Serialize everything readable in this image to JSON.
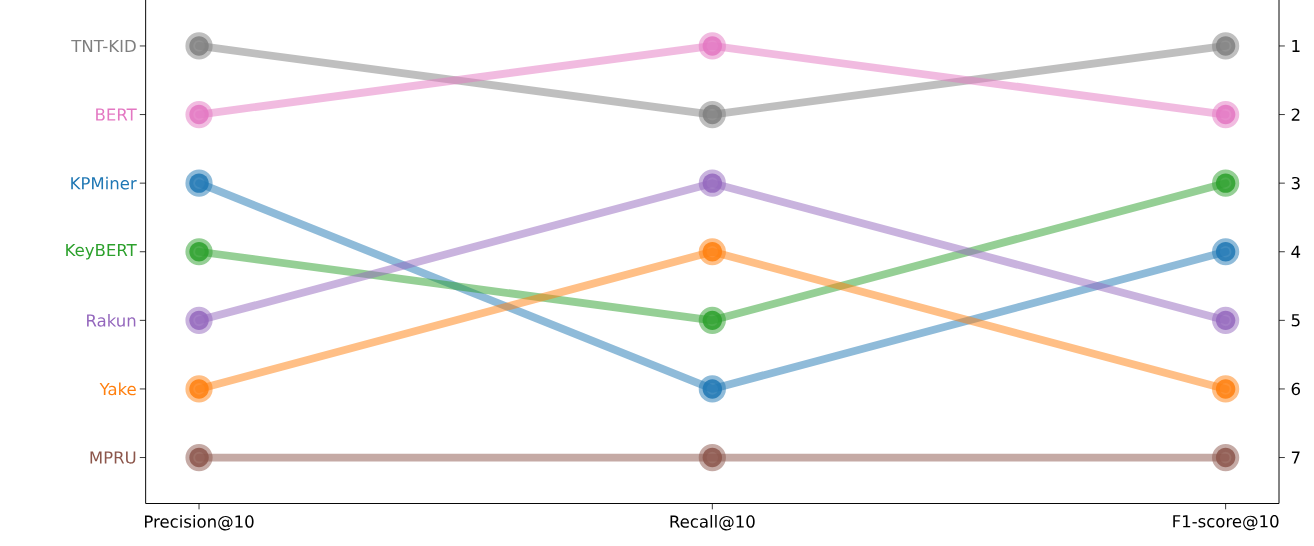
{
  "chart_data": {
    "type": "line",
    "categories": [
      "Precision@10",
      "Recall@10",
      "F1-score@10"
    ],
    "series": [
      {
        "name": "TNT-KID",
        "color": "#7f7f7f",
        "values": [
          1,
          2,
          1
        ]
      },
      {
        "name": "BERT",
        "color": "#e377c2",
        "values": [
          2,
          1,
          2
        ]
      },
      {
        "name": "KPMiner",
        "color": "#1f77b4",
        "values": [
          3,
          6,
          4
        ]
      },
      {
        "name": "KeyBERT",
        "color": "#2ca02c",
        "values": [
          4,
          5,
          3
        ]
      },
      {
        "name": "Rakun",
        "color": "#9467bd",
        "values": [
          5,
          3,
          5
        ]
      },
      {
        "name": "Yake",
        "color": "#ff7f0e",
        "values": [
          6,
          4,
          6
        ]
      },
      {
        "name": "MPRU",
        "color": "#8c564b",
        "values": [
          7,
          7,
          7
        ]
      }
    ],
    "ylim": [
      7.67,
      0.33
    ],
    "yticks": [
      1,
      2,
      3,
      4,
      5,
      6,
      7
    ],
    "marker": "circle",
    "line_style": "solid"
  }
}
